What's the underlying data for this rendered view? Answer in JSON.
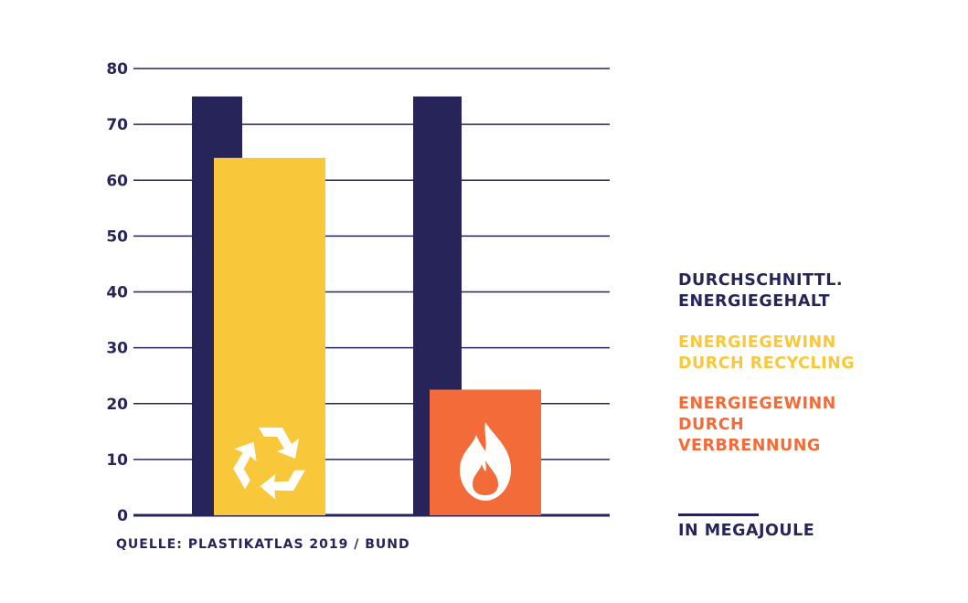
{
  "chart_data": {
    "type": "bar",
    "ylim": [
      0,
      80
    ],
    "yticks": [
      0,
      10,
      20,
      30,
      40,
      50,
      60,
      70,
      80
    ],
    "grid": true,
    "legend_position": "right",
    "groups": [
      {
        "energiegehalt": 75,
        "gewinn": 64,
        "gewinn_type": "recycling",
        "icon": "recycle-icon"
      },
      {
        "energiegehalt": 75,
        "gewinn": 22.5,
        "gewinn_type": "verbrennung",
        "icon": "flame-icon"
      }
    ],
    "series": [
      {
        "name": "DURCHSCHNITTL.\nENERGIEGEHALT",
        "color": "#262459"
      },
      {
        "name": "ENERGIEGEWINN\nDURCH RECYCLING",
        "color": "#f9c83a"
      },
      {
        "name": "ENERGIEGEWINN\nDURCH\nVERBRENNUNG",
        "color": "#f26b38"
      }
    ],
    "unit": "IN MEGAJOULE",
    "source": "QUELLE: PLASTIKATLAS 2019 / BUND"
  },
  "colors": {
    "navy": "#262459",
    "yellow": "#f9c83a",
    "orange": "#f26b38",
    "grid": "#262459"
  }
}
